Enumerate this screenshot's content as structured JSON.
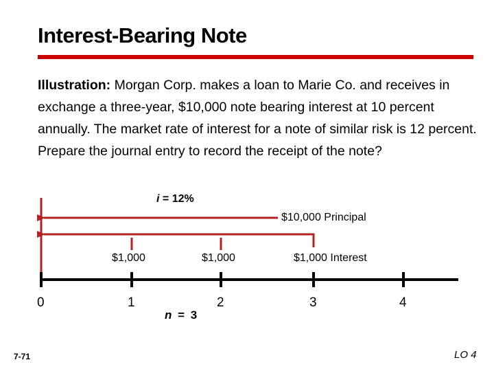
{
  "slide": {
    "title": "Interest-Bearing Note",
    "illustration_label": "Illustration:",
    "illustration_text": " Morgan Corp. makes a loan to Marie Co. and receives in exchange a three-year, $10,000 note bearing interest at 10 percent annually. The market rate of interest for a note of similar risk is 12 percent.  Prepare the journal entry to record the receipt of the note?",
    "slide_number": "7-71",
    "lo_label": "LO 4"
  },
  "diagram": {
    "rate_symbol": "i",
    "rate_value": " = 12%",
    "principal_label": "$10,000   Principal",
    "payments": [
      "$1,000",
      "$1,000",
      "$1,000   Interest"
    ],
    "periods": [
      "0",
      "1",
      "2",
      "3",
      "4"
    ],
    "n_symbol": "n",
    "n_value": " = 3",
    "colors": {
      "accent": "#cc0000",
      "timeline": "#000000",
      "arrow": "#b22222"
    }
  }
}
